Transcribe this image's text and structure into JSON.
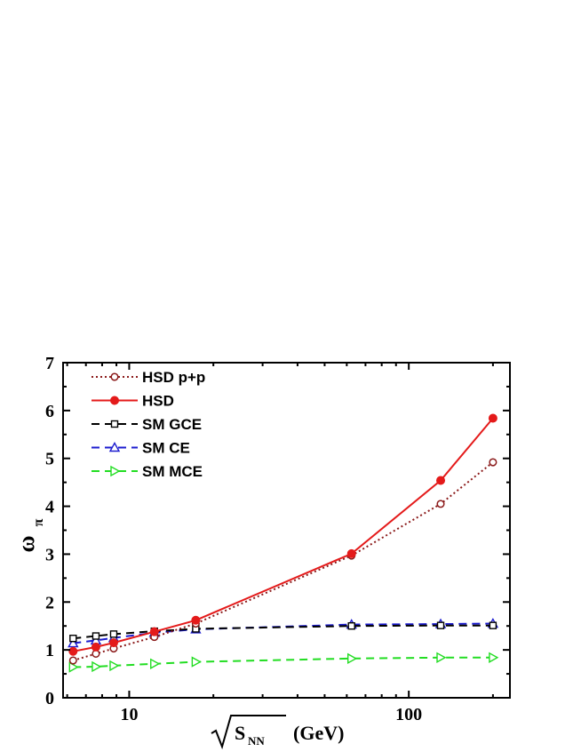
{
  "chart_data": {
    "type": "line",
    "xscale": "log",
    "xlim": [
      5.8,
      230
    ],
    "ylim": [
      0,
      7
    ],
    "xticks": [
      {
        "value": 10,
        "label": "10"
      },
      {
        "value": 100,
        "label": "100"
      }
    ],
    "yticks": [
      {
        "value": 0,
        "label": "0"
      },
      {
        "value": 1,
        "label": "1"
      },
      {
        "value": 2,
        "label": "2"
      },
      {
        "value": 3,
        "label": "3"
      },
      {
        "value": 4,
        "label": "4"
      },
      {
        "value": 5,
        "label": "5"
      },
      {
        "value": 6,
        "label": "6"
      },
      {
        "value": 7,
        "label": "7"
      }
    ],
    "ylabel_main": "ω",
    "ylabel_sub": "π",
    "xlabel_sub": "NN",
    "xlabel_unit": "(GeV)",
    "xlabel_letter": "S",
    "grid": false,
    "legend_position": "top-left",
    "series": [
      {
        "name": "HSD p+p",
        "color": "#8b1a1a",
        "dash": "2,3",
        "marker": "circle-open",
        "x": [
          6.3,
          7.6,
          8.8,
          12.3,
          17.3,
          62.4,
          130,
          200
        ],
        "y": [
          0.78,
          0.92,
          1.03,
          1.27,
          1.55,
          2.97,
          4.05,
          4.92
        ]
      },
      {
        "name": "HSD",
        "color": "#e41a1a",
        "dash": "",
        "marker": "circle-filled",
        "x": [
          6.3,
          7.6,
          8.8,
          12.3,
          17.3,
          62.4,
          130,
          200
        ],
        "y": [
          0.97,
          1.06,
          1.15,
          1.38,
          1.62,
          3.01,
          4.54,
          5.84
        ]
      },
      {
        "name": "SM GCE",
        "color": "#000000",
        "dash": "9,6",
        "marker": "square-open",
        "x": [
          6.3,
          7.6,
          8.8,
          12.3,
          17.3,
          62.4,
          130,
          200
        ],
        "y": [
          1.24,
          1.29,
          1.33,
          1.39,
          1.44,
          1.5,
          1.51,
          1.51
        ]
      },
      {
        "name": "SM CE",
        "color": "#1c1ccf",
        "dash": "9,6",
        "marker": "triangle-up-open",
        "x": [
          6.3,
          7.6,
          8.8,
          12.3,
          17.3,
          62.4,
          130,
          200
        ],
        "y": [
          1.14,
          1.2,
          1.25,
          1.36,
          1.43,
          1.53,
          1.54,
          1.55
        ]
      },
      {
        "name": "SM MCE",
        "color": "#22dd22",
        "dash": "9,6",
        "marker": "triangle-right-open",
        "x": [
          6.3,
          7.6,
          8.8,
          12.3,
          17.3,
          62.4,
          130,
          200
        ],
        "y": [
          0.64,
          0.65,
          0.67,
          0.71,
          0.75,
          0.82,
          0.84,
          0.84
        ]
      }
    ]
  }
}
